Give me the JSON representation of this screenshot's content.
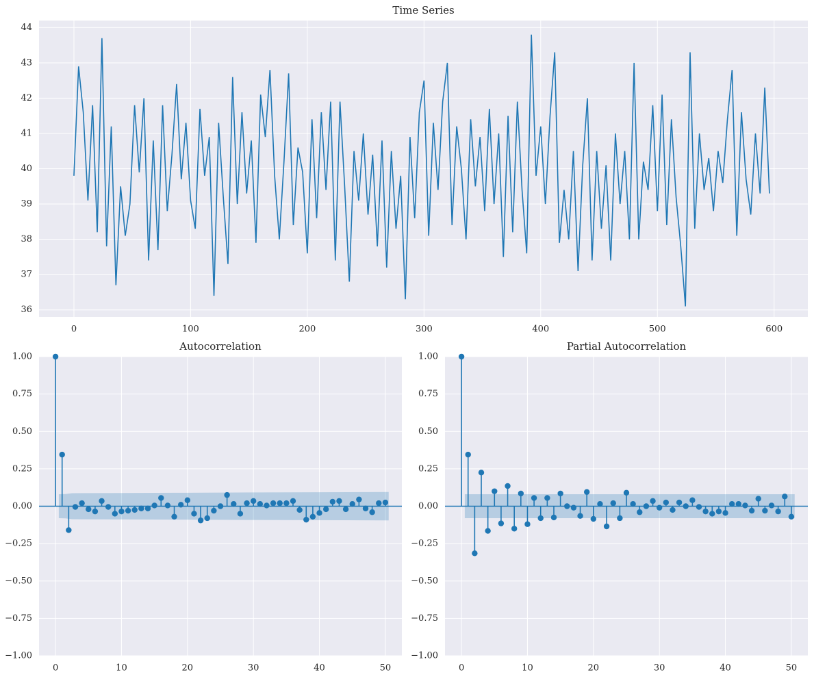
{
  "chart_data": [
    {
      "type": "line",
      "title": "Time Series",
      "color": "#1f77b4",
      "grid": true,
      "xlim": [
        -29.9,
        628.9
      ],
      "ylim": [
        35.8,
        44.2
      ],
      "xticks": [
        0,
        100,
        200,
        300,
        400,
        500,
        600
      ],
      "yticks": [
        36,
        37,
        38,
        39,
        40,
        41,
        42,
        43,
        44
      ],
      "x": [
        0,
        4,
        8,
        12,
        16,
        20,
        24,
        28,
        32,
        36,
        40,
        44,
        48,
        52,
        56,
        60,
        64,
        68,
        72,
        76,
        80,
        84,
        88,
        92,
        96,
        100,
        104,
        108,
        112,
        116,
        120,
        124,
        128,
        132,
        136,
        140,
        144,
        148,
        152,
        156,
        160,
        164,
        168,
        172,
        176,
        180,
        184,
        188,
        192,
        196,
        200,
        204,
        208,
        212,
        216,
        220,
        224,
        228,
        232,
        236,
        240,
        244,
        248,
        252,
        256,
        260,
        264,
        268,
        272,
        276,
        280,
        284,
        288,
        292,
        296,
        300,
        304,
        308,
        312,
        316,
        320,
        324,
        328,
        332,
        336,
        340,
        344,
        348,
        352,
        356,
        360,
        364,
        368,
        372,
        376,
        380,
        384,
        388,
        392,
        396,
        400,
        404,
        408,
        412,
        416,
        420,
        424,
        428,
        432,
        436,
        440,
        444,
        448,
        452,
        456,
        460,
        464,
        468,
        472,
        476,
        480,
        484,
        488,
        492,
        496,
        500,
        504,
        508,
        512,
        516,
        520,
        524,
        528,
        532,
        536,
        540,
        544,
        548,
        552,
        556,
        560,
        564,
        568,
        572,
        576,
        580,
        584,
        588,
        592,
        596
      ],
      "values": [
        39.8,
        42.9,
        41.6,
        39.1,
        41.8,
        38.2,
        43.7,
        37.8,
        41.2,
        36.7,
        39.5,
        38.1,
        39.0,
        41.8,
        39.9,
        42.0,
        37.4,
        40.8,
        37.7,
        41.8,
        38.8,
        40.4,
        42.4,
        39.7,
        41.3,
        39.1,
        38.3,
        41.7,
        39.8,
        40.9,
        36.4,
        41.3,
        39.2,
        37.3,
        42.6,
        39.0,
        41.6,
        39.3,
        40.8,
        37.9,
        42.1,
        40.9,
        42.8,
        39.8,
        38.0,
        40.2,
        42.7,
        38.4,
        40.6,
        39.9,
        37.6,
        41.4,
        38.6,
        41.6,
        39.4,
        41.9,
        37.4,
        41.9,
        39.5,
        36.8,
        40.5,
        39.1,
        41.0,
        38.7,
        40.4,
        37.8,
        40.8,
        37.2,
        40.5,
        38.3,
        39.8,
        36.3,
        40.9,
        38.6,
        41.6,
        42.5,
        38.1,
        41.3,
        39.4,
        41.9,
        43.0,
        38.4,
        41.2,
        40.0,
        38.0,
        41.4,
        39.5,
        40.9,
        38.8,
        41.7,
        39.0,
        41.0,
        37.5,
        41.5,
        38.2,
        41.9,
        39.4,
        37.6,
        43.8,
        39.8,
        41.2,
        39.0,
        41.5,
        43.3,
        37.9,
        39.4,
        38.0,
        40.5,
        37.1,
        40.1,
        42.0,
        37.4,
        40.5,
        38.3,
        40.1,
        37.4,
        41.0,
        39.0,
        40.5,
        38.0,
        43.0,
        38.0,
        40.2,
        39.4,
        41.8,
        38.8,
        42.1,
        38.4,
        41.4,
        39.2,
        37.8,
        36.1,
        43.3,
        38.3,
        41.0,
        39.4,
        40.3,
        38.8,
        40.5,
        39.6,
        41.4,
        42.8,
        38.1,
        41.6,
        39.7,
        38.7,
        41.0,
        39.3,
        42.3,
        39.3
      ]
    },
    {
      "type": "stem",
      "title": "Autocorrelation",
      "color": "#1f77b4",
      "grid": true,
      "xlim": [
        -2.5,
        52.5
      ],
      "ylim": [
        -1,
        1
      ],
      "xticks": [
        0,
        10,
        20,
        30,
        40,
        50
      ],
      "yticks": [
        {
          "value": -1,
          "label": "−1.00"
        },
        {
          "value": -0.75,
          "label": "−0.75"
        },
        {
          "value": -0.5,
          "label": "−0.50"
        },
        {
          "value": -0.25,
          "label": "−0.25"
        },
        {
          "value": 0,
          "label": "0.00"
        },
        {
          "value": 0.25,
          "label": "0.25"
        },
        {
          "value": 0.5,
          "label": "0.50"
        },
        {
          "value": 0.75,
          "label": "0.75"
        },
        {
          "value": 1,
          "label": "1.00"
        }
      ],
      "x": [
        0,
        1,
        2,
        3,
        4,
        5,
        6,
        7,
        8,
        9,
        10,
        11,
        12,
        13,
        14,
        15,
        16,
        17,
        18,
        19,
        20,
        21,
        22,
        23,
        24,
        25,
        26,
        27,
        28,
        29,
        30,
        31,
        32,
        33,
        34,
        35,
        36,
        37,
        38,
        39,
        40,
        41,
        42,
        43,
        44,
        45,
        46,
        47,
        48,
        49,
        50
      ],
      "values": [
        1.0,
        0.345,
        -0.16,
        -0.005,
        0.02,
        -0.02,
        -0.035,
        0.035,
        -0.005,
        -0.05,
        -0.035,
        -0.03,
        -0.025,
        -0.015,
        -0.015,
        0.005,
        0.055,
        0.005,
        -0.07,
        0.01,
        0.04,
        -0.05,
        -0.095,
        -0.08,
        -0.03,
        0.0,
        0.075,
        0.015,
        -0.05,
        0.02,
        0.035,
        0.015,
        0.005,
        0.02,
        0.02,
        0.02,
        0.035,
        -0.025,
        -0.09,
        -0.07,
        -0.045,
        -0.02,
        0.03,
        0.035,
        -0.02,
        0.015,
        0.045,
        -0.015,
        -0.04,
        0.02,
        0.025
      ],
      "band": {
        "x": [
          0.5,
          1.5,
          2.5,
          10,
          20,
          30,
          40,
          50.5
        ],
        "upper": [
          0.08,
          0.081,
          0.087,
          0.088,
          0.09,
          0.092,
          0.093,
          0.095
        ],
        "lower": [
          -0.08,
          -0.081,
          -0.087,
          -0.088,
          -0.09,
          -0.092,
          -0.093,
          -0.095
        ]
      }
    },
    {
      "type": "stem",
      "title": "Partial Autocorrelation",
      "color": "#1f77b4",
      "grid": true,
      "xlim": [
        -2.5,
        52.5
      ],
      "ylim": [
        -1,
        1
      ],
      "xticks": [
        0,
        10,
        20,
        30,
        40,
        50
      ],
      "yticks": [
        {
          "value": -1,
          "label": "−1.00"
        },
        {
          "value": -0.75,
          "label": "−0.75"
        },
        {
          "value": -0.5,
          "label": "−0.50"
        },
        {
          "value": -0.25,
          "label": "−0.25"
        },
        {
          "value": 0,
          "label": "0.00"
        },
        {
          "value": 0.25,
          "label": "0.25"
        },
        {
          "value": 0.5,
          "label": "0.50"
        },
        {
          "value": 0.75,
          "label": "0.75"
        },
        {
          "value": 1,
          "label": "1.00"
        }
      ],
      "x": [
        0,
        1,
        2,
        3,
        4,
        5,
        6,
        7,
        8,
        9,
        10,
        11,
        12,
        13,
        14,
        15,
        16,
        17,
        18,
        19,
        20,
        21,
        22,
        23,
        24,
        25,
        26,
        27,
        28,
        29,
        30,
        31,
        32,
        33,
        34,
        35,
        36,
        37,
        38,
        39,
        40,
        41,
        42,
        43,
        44,
        45,
        46,
        47,
        48,
        49,
        50
      ],
      "values": [
        1.0,
        0.345,
        -0.315,
        0.225,
        -0.165,
        0.1,
        -0.115,
        0.135,
        -0.15,
        0.085,
        -0.12,
        0.055,
        -0.08,
        0.055,
        -0.075,
        0.085,
        0.0,
        -0.01,
        -0.065,
        0.095,
        -0.085,
        0.015,
        -0.135,
        0.02,
        -0.08,
        0.09,
        0.015,
        -0.04,
        0.0,
        0.035,
        -0.01,
        0.025,
        -0.025,
        0.025,
        0.0,
        0.04,
        -0.005,
        -0.035,
        -0.05,
        -0.035,
        -0.045,
        0.015,
        0.015,
        0.005,
        -0.03,
        0.05,
        -0.03,
        0.005,
        -0.035,
        0.065,
        -0.07
      ],
      "band": {
        "x": [
          0.5,
          50.5
        ],
        "upper": [
          0.08,
          0.08
        ],
        "lower": [
          -0.08,
          -0.08
        ]
      }
    }
  ]
}
